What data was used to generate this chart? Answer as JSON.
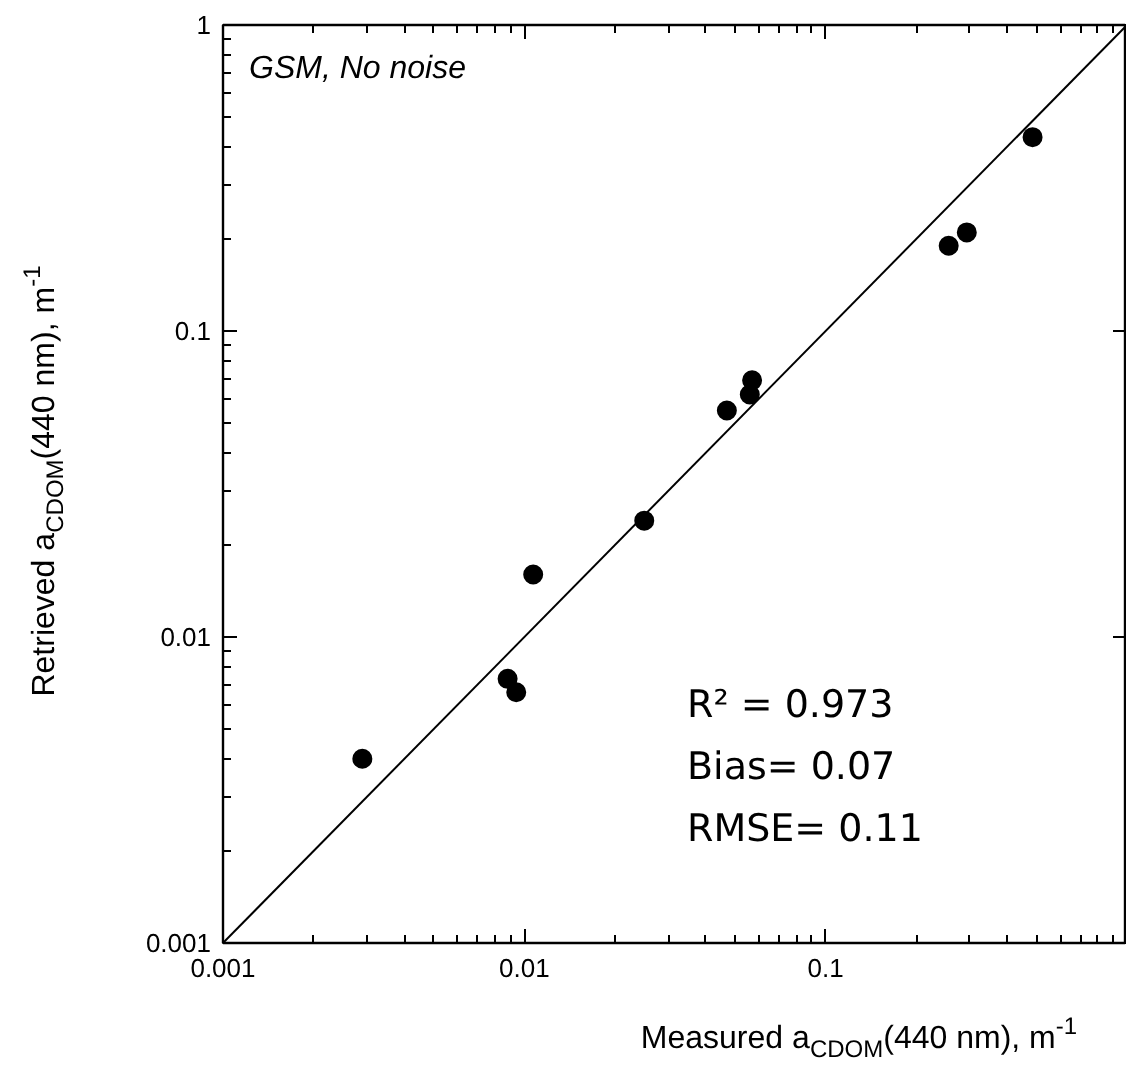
{
  "chart_data": {
    "type": "scatter",
    "xlabel": "Measured a$_{CDOM}$(440 nm), m$^{-1}$",
    "ylabel": "Retrieved a$_{CDOM}$(440 nm), m$^{-1}$",
    "annotations": [
      "GSM, No noise",
      "R² = 0.973",
      "Bias= 0.07",
      "RMSE= 0.11"
    ],
    "log": "xy",
    "grid": false,
    "marker": "circle",
    "xlim": [
      0.001,
      1
    ],
    "ylim": [
      0.001,
      1
    ],
    "xticks": [
      0.001,
      0.01,
      0.1
    ],
    "yticks": [
      0.001,
      0.01,
      0.1,
      1
    ],
    "series": [
      {
        "color": "#000000",
        "x": [
          0.0029,
          0.0088,
          0.0094,
          0.0107,
          0.025,
          0.047,
          0.056,
          0.057,
          0.256,
          0.294,
          0.486
        ],
        "values": [
          0.004,
          0.0073,
          0.0066,
          0.016,
          0.024,
          0.055,
          0.062,
          0.069,
          0.19,
          0.21,
          0.43
        ]
      },
      {
        "type": "line",
        "color": "#000000",
        "marker": "none",
        "x": [
          0.001,
          1
        ],
        "values": [
          0.001,
          1
        ]
      }
    ]
  }
}
